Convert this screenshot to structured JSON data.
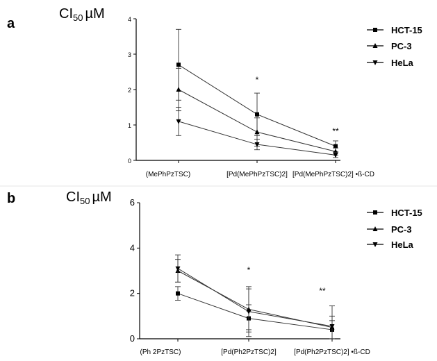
{
  "chart_data": [
    {
      "panel_label": "a",
      "type": "line",
      "ylabel_main": "CI",
      "ylabel_sub": "50",
      "ylabel_unit": "µM",
      "categories": [
        "(MePhPzTSC)",
        "[Pd(MePhPzTSC)2]",
        "[Pd(MePhPzTSC)2] •ß-CD"
      ],
      "ylim": [
        0,
        4
      ],
      "yticks": [
        "0",
        "1",
        "2",
        "3",
        "4"
      ],
      "series": [
        {
          "name": "HCT-15",
          "values": [
            2.7,
            1.3,
            0.4
          ],
          "errors": [
            1.0,
            0.6,
            0.15
          ],
          "marker": "square"
        },
        {
          "name": "PC-3",
          "values": [
            2.0,
            0.8,
            0.25
          ],
          "errors": [
            0.6,
            0.4,
            0.1
          ],
          "marker": "triangle-up"
        },
        {
          "name": "HeLa",
          "values": [
            1.1,
            0.45,
            0.15
          ],
          "errors": [
            0.4,
            0.15,
            0.07
          ],
          "marker": "triangle-down"
        }
      ],
      "annotations": [
        "*",
        "**"
      ],
      "legend": "top-right",
      "grid": false
    },
    {
      "panel_label": "b",
      "type": "line",
      "ylabel_main": "CI",
      "ylabel_sub": "50",
      "ylabel_unit": "µM",
      "categories": [
        "(Ph 2PzTSC)",
        "[Pd(Ph2PzTSC)2]",
        "[Pd(Ph2PzTSC)2] •ß-CD"
      ],
      "ylim": [
        0,
        6
      ],
      "yticks": [
        "0",
        "2",
        "4",
        "6"
      ],
      "series": [
        {
          "name": "HCT-15",
          "values": [
            2.0,
            0.9,
            0.4
          ],
          "errors": [
            0.3,
            0.6,
            0.4
          ],
          "marker": "square"
        },
        {
          "name": "PC-3",
          "values": [
            3.0,
            1.3,
            0.5
          ],
          "errors": [
            0.5,
            0.9,
            0.5
          ],
          "marker": "triangle-up"
        },
        {
          "name": "HeLa",
          "values": [
            3.1,
            1.2,
            0.55
          ],
          "errors": [
            0.6,
            1.1,
            0.9
          ],
          "marker": "triangle-down"
        }
      ],
      "annotations": [
        "*",
        "**"
      ],
      "legend": "top-right",
      "grid": false
    }
  ]
}
